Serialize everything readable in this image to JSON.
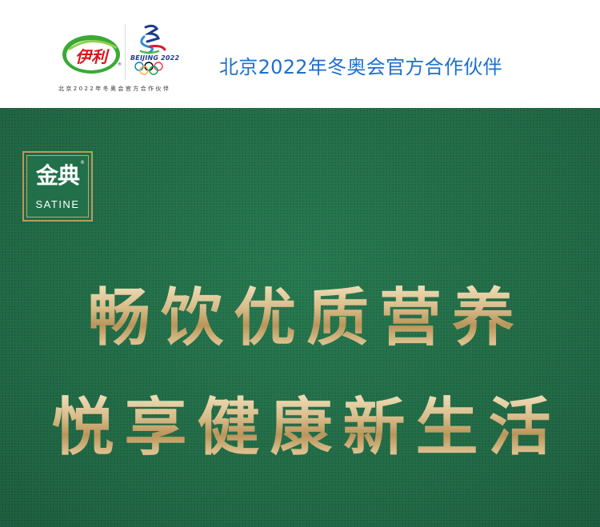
{
  "header": {
    "yili_logo_text": "伊利",
    "beijing_logo_text": "BEIJING 2022",
    "subtext": "北京2022年冬奥会官方合作伙伴",
    "partner_title": "北京2022年冬奥会官方合作伙伴"
  },
  "brand": {
    "cn": "金典",
    "en": "SATINE",
    "registered": "®"
  },
  "headline": {
    "line1": "畅饮优质营养",
    "line2": "悦享健康新生活"
  },
  "colors": {
    "green": "#1f6b45",
    "gold": "#d9bd8a",
    "blue_text": "#1e6fcf",
    "yili_green": "#3aa935",
    "yili_red": "#d7161c"
  },
  "icons": {
    "yili": "yili-logo-icon",
    "beijing": "beijing-2022-emblem-icon",
    "rings": "olympic-rings-icon"
  }
}
